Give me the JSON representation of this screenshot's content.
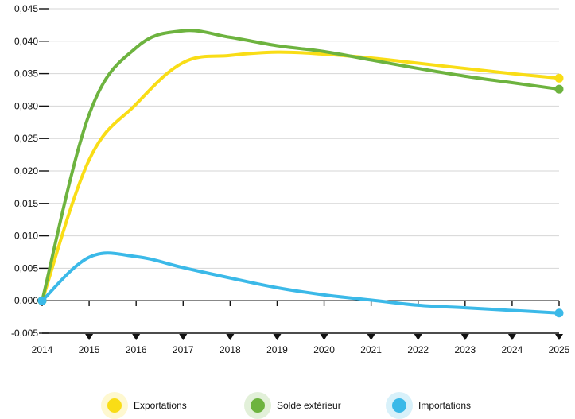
{
  "chart_data": {
    "type": "line",
    "x": [
      "2014",
      "2015",
      "2016",
      "2017",
      "2018",
      "2019",
      "2020",
      "2021",
      "2022",
      "2023",
      "2024",
      "2025"
    ],
    "series": [
      {
        "name": "Exportations",
        "color": "#f9dd16",
        "values": [
          0.0,
          0.0217,
          0.0303,
          0.0367,
          0.0378,
          0.0383,
          0.038,
          0.0374,
          0.0366,
          0.0358,
          0.035,
          0.0343
        ]
      },
      {
        "name": "Solde extérieur",
        "color": "#6db33f",
        "values": [
          0.0,
          0.0287,
          0.039,
          0.0416,
          0.0406,
          0.0393,
          0.0384,
          0.0371,
          0.0358,
          0.0346,
          0.0336,
          0.0326
        ]
      },
      {
        "name": "Importations",
        "color": "#3bb9e8",
        "values": [
          0.0,
          0.0067,
          0.0068,
          0.0051,
          0.0035,
          0.002,
          0.0009,
          0.0001,
          -0.0007,
          -0.0011,
          -0.0015,
          -0.0019
        ]
      }
    ],
    "yticks": [
      "-0,005",
      "0,000",
      "0,005",
      "0,010",
      "0,015",
      "0,020",
      "0,025",
      "0,030",
      "0,035",
      "0,040",
      "0,045"
    ],
    "ylim": [
      -0.005,
      0.045
    ],
    "title": "",
    "xlabel": "",
    "ylabel": "",
    "grid": "horizontal",
    "legend_position": "bottom"
  }
}
